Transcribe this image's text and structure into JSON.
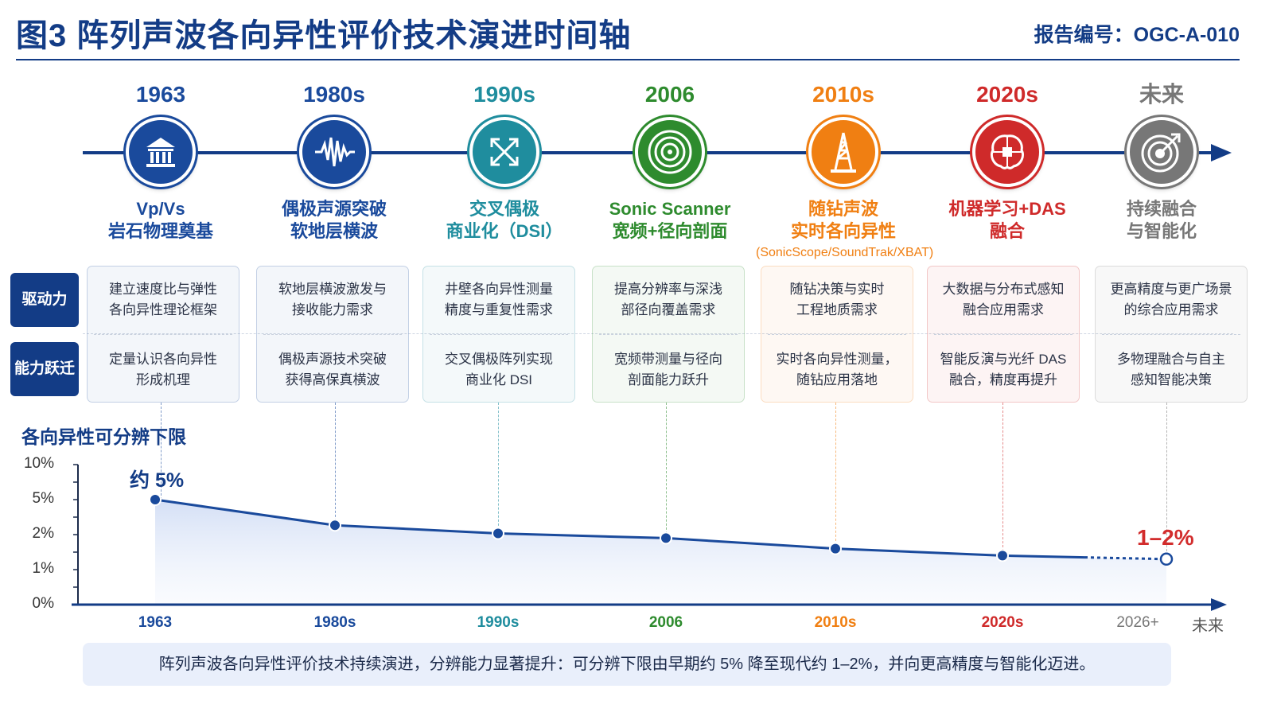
{
  "header": {
    "title": "图3  阵列声波各向异性评价技术演进时间轴",
    "report_id": "报告编号：OGC-A-010"
  },
  "eras": [
    {
      "year": "1963",
      "label_1": "Vp/Vs",
      "label_2": "岩石物理奠基",
      "sublabel": "",
      "color": "#1a4a9c",
      "icon": "institution-icon",
      "driver_1": "建立速度比与弹性",
      "driver_2": "各向异性理论框架",
      "leap_1": "定量认识各向异性",
      "leap_2": "形成机理"
    },
    {
      "year": "1980s",
      "label_1": "偶极声源突破",
      "label_2": "软地层横波",
      "sublabel": "",
      "color": "#1a4a9c",
      "icon": "waveform-icon",
      "driver_1": "软地层横波激发与",
      "driver_2": "接收能力需求",
      "leap_1": "偶极声源技术突破",
      "leap_2": "获得高保真横波"
    },
    {
      "year": "1990s",
      "label_1": "交叉偶极",
      "label_2": "商业化（DSI）",
      "sublabel": "",
      "color": "#1f8d9e",
      "icon": "cross-arrows-icon",
      "driver_1": "井壁各向异性测量",
      "driver_2": "精度与重复性需求",
      "leap_1": "交叉偶极阵列实现",
      "leap_2": "商业化 DSI"
    },
    {
      "year": "2006",
      "label_1": "Sonic Scanner",
      "label_2": "宽频+径向剖面",
      "sublabel": "",
      "color": "#2e8b2e",
      "icon": "target-rings-icon",
      "driver_1": "提高分辨率与深浅",
      "driver_2": "部径向覆盖需求",
      "leap_1": "宽频带测量与径向",
      "leap_2": "剖面能力跃升"
    },
    {
      "year": "2010s",
      "label_1": "随钻声波",
      "label_2": "实时各向异性",
      "sublabel": "(SonicScope/SoundTrak/XBAT)",
      "color": "#f07f12",
      "icon": "drilling-rig-icon",
      "driver_1": "随钻决策与实时",
      "driver_2": "工程地质需求",
      "leap_1": "实时各向异性测量，",
      "leap_2": "随钻应用落地"
    },
    {
      "year": "2020s",
      "label_1": "机器学习+DAS",
      "label_2": "融合",
      "sublabel": "",
      "color": "#cf2a2a",
      "icon": "brain-chip-icon",
      "driver_1": "大数据与分布式感知",
      "driver_2": "融合应用需求",
      "leap_1": "智能反演与光纤 DAS",
      "leap_2": "融合，精度再提升"
    },
    {
      "year": "未来",
      "label_1": "持续融合",
      "label_2": "与智能化",
      "sublabel": "",
      "color": "#777777",
      "icon": "target-arrow-icon",
      "driver_1": "更高精度与更广场景",
      "driver_2": "的综合应用需求",
      "leap_1": "多物理融合与自主",
      "leap_2": "感知智能决策"
    }
  ],
  "rows": {
    "driver_tag": "驱动力",
    "leap_tag": "能力跃迁"
  },
  "chart_data": {
    "type": "line",
    "title": "各向异性可分辨下限",
    "categories": [
      "1963",
      "1980s",
      "1990s",
      "2006",
      "2010s",
      "2020s",
      "2026+"
    ],
    "series": [
      {
        "values": [
          5,
          2.8,
          2.1,
          1.9,
          1.6,
          1.4,
          1.3
        ]
      }
    ],
    "projected_from_index": 5,
    "y_ticks": [
      "0%",
      "1%",
      "2%",
      "5%",
      "10%"
    ],
    "y_axis_end_label": "未来",
    "annotation_start": "约 5%",
    "annotation_end": "1–2%",
    "tick_colors": [
      "#1a4a9c",
      "#1a4a9c",
      "#1f8d9e",
      "#2e8b2e",
      "#f07f12",
      "#cf2a2a",
      "#777777"
    ],
    "line_color": "#1a4a9c"
  },
  "footer": {
    "text": "阵列声波各向异性评价技术持续演进，分辨能力显著提升：可分辨下限由早期约 5% 降至现代约 1–2%，并向更高精度与智能化迈进。"
  }
}
